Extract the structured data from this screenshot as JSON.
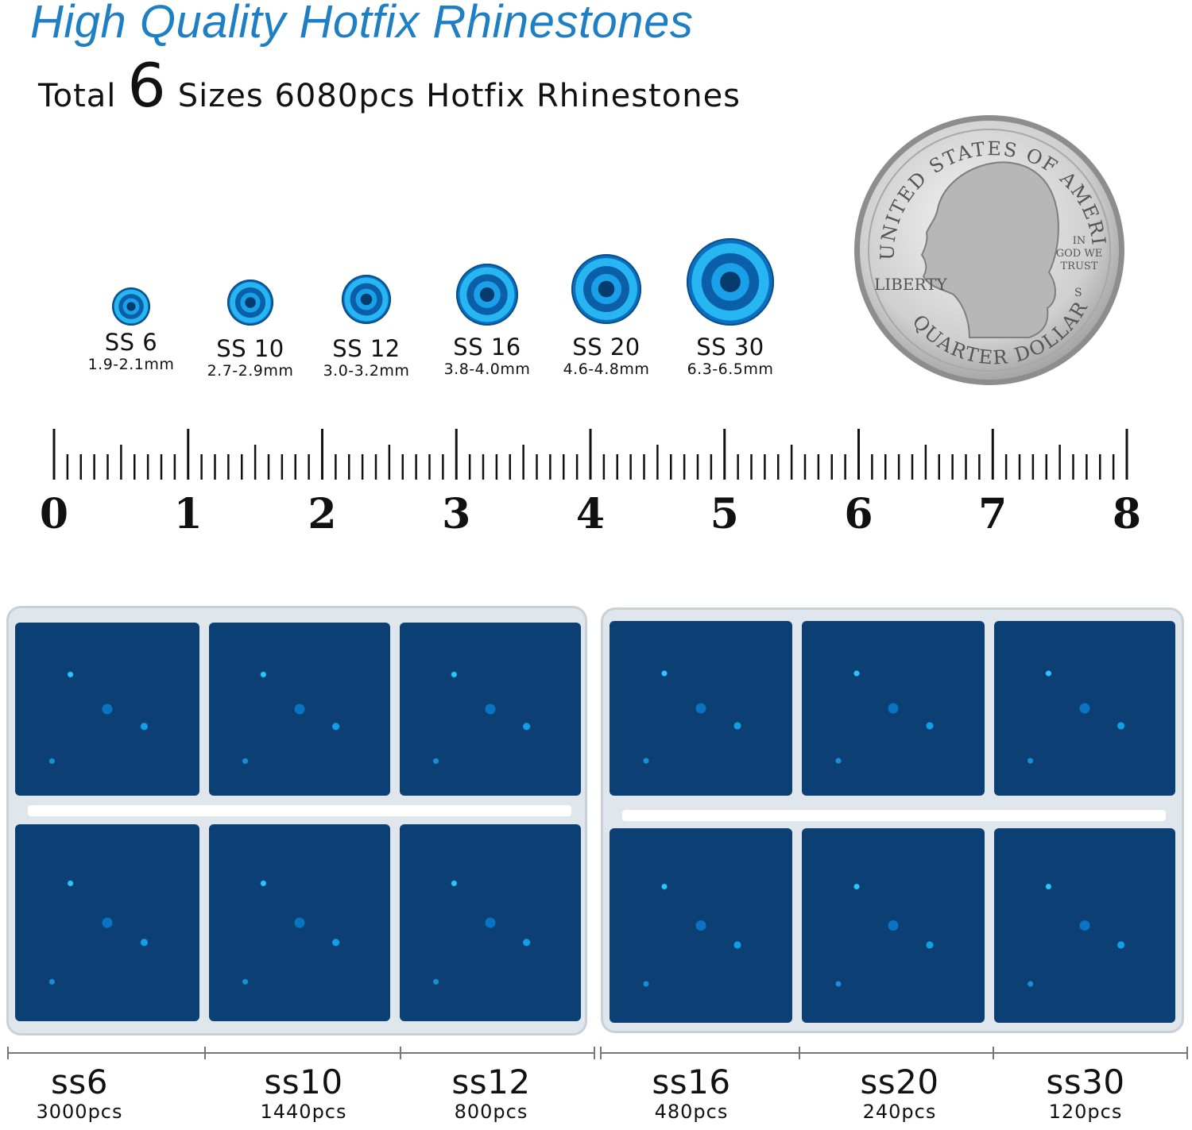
{
  "header": {
    "title": "High Quality Hotfix Rhinestones",
    "subtitle_before": "Total",
    "subtitle_number": "6",
    "subtitle_after": "Sizes 6080pcs Hotfix Rhinestones"
  },
  "stones": [
    {
      "label": "SS 6",
      "size": "1.9-2.1mm"
    },
    {
      "label": "SS 10",
      "size": "2.7-2.9mm"
    },
    {
      "label": "SS 12",
      "size": "3.0-3.2mm"
    },
    {
      "label": "SS 16",
      "size": "3.8-4.0mm"
    },
    {
      "label": "SS 20",
      "size": "4.6-4.8mm"
    },
    {
      "label": "SS 30",
      "size": "6.3-6.5mm"
    }
  ],
  "coin": {
    "top_text": "UNITED STATES OF AMERICA",
    "left_text": "LIBERTY",
    "motto": [
      "IN",
      "GOD WE",
      "TRUST"
    ],
    "mint": "S",
    "bottom_text": "QUARTER DOLLAR"
  },
  "ruler": {
    "numbers": [
      "0",
      "1",
      "2",
      "3",
      "4",
      "5",
      "6",
      "7",
      "8"
    ]
  },
  "packs": [
    {
      "name": "ss6",
      "count": "3000pcs"
    },
    {
      "name": "ss10",
      "count": "1440pcs"
    },
    {
      "name": "ss12",
      "count": "800pcs"
    },
    {
      "name": "ss16",
      "count": "480pcs"
    },
    {
      "name": "ss20",
      "count": "240pcs"
    },
    {
      "name": "ss30",
      "count": "120pcs"
    }
  ],
  "colors": {
    "title": "#1f7fc4",
    "stone": "#0b6fc0",
    "stone_highlight": "#28b6f3"
  }
}
